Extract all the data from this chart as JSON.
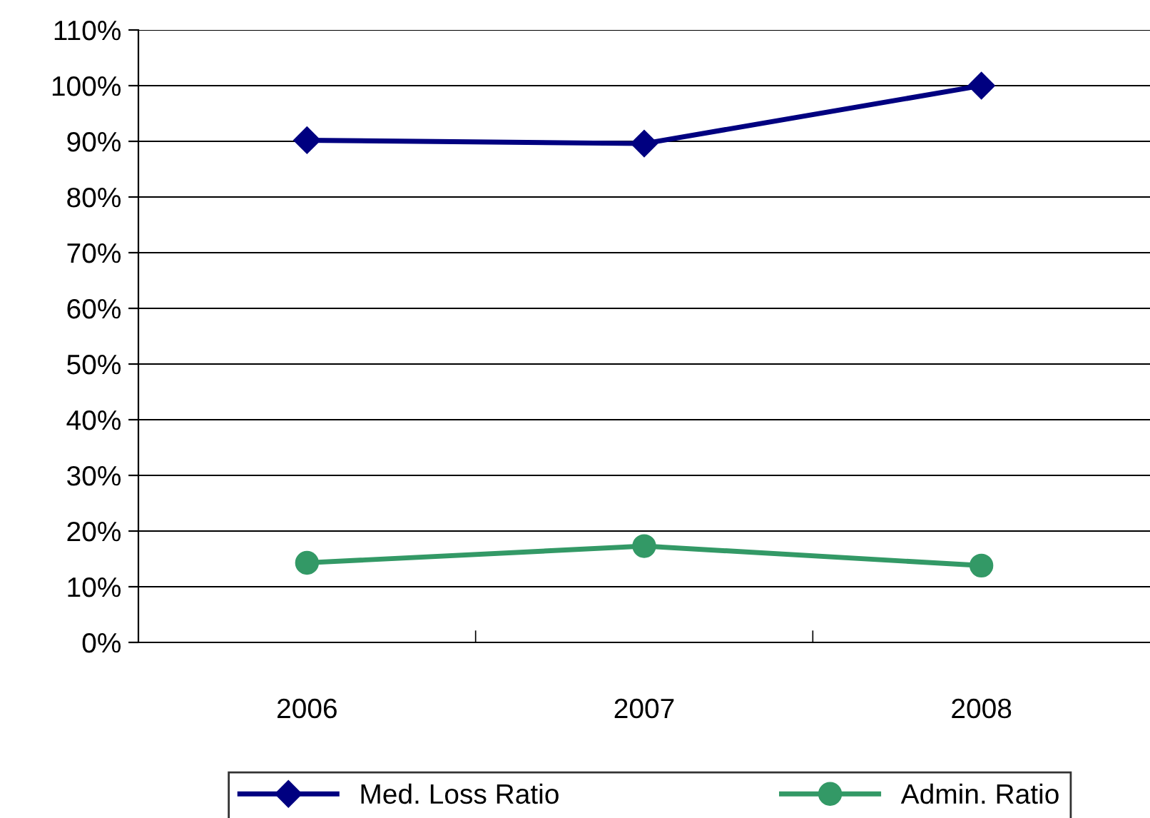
{
  "chart_data": {
    "type": "line",
    "categories": [
      "2006",
      "2007",
      "2008"
    ],
    "series": [
      {
        "name": "Med. Loss Ratio",
        "color": "#000080",
        "values": [
          90.2,
          89.6,
          100
        ],
        "marker": "diamond"
      },
      {
        "name": "Admin. Ratio",
        "color": "#339966",
        "values": [
          14.3,
          17.3,
          13.8
        ],
        "marker": "circle"
      }
    ],
    "ylim": [
      0,
      110
    ],
    "yticks": [
      {
        "value": 0,
        "label": "0%"
      },
      {
        "value": 10,
        "label": "10%"
      },
      {
        "value": 20,
        "label": "20%"
      },
      {
        "value": 30,
        "label": "30%"
      },
      {
        "value": 40,
        "label": "40%"
      },
      {
        "value": 50,
        "label": "50%"
      },
      {
        "value": 60,
        "label": "60%"
      },
      {
        "value": 70,
        "label": "70%"
      },
      {
        "value": 80,
        "label": "80%"
      },
      {
        "value": 90,
        "label": "90%"
      },
      {
        "value": 100,
        "label": "100%"
      },
      {
        "value": 110,
        "label": "110%"
      }
    ],
    "grid": "y",
    "legend": "bottom",
    "line_style": "solid"
  }
}
